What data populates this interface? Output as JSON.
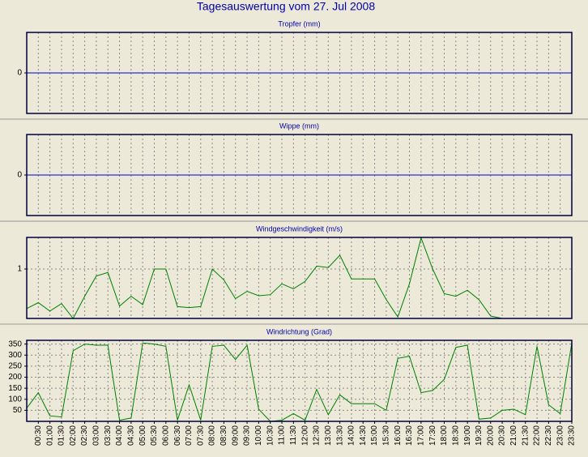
{
  "title": "Tagesauswertung vom 27. Jul 2008",
  "chart_data": [
    {
      "type": "line",
      "title": "Tropfer (mm)",
      "ylim": [
        -1,
        1
      ],
      "yticks": [
        0
      ],
      "grid": true,
      "series": [
        {
          "color": "#0000cc",
          "values": [
            0,
            0,
            0,
            0,
            0,
            0,
            0,
            0,
            0,
            0,
            0,
            0,
            0,
            0,
            0,
            0,
            0,
            0,
            0,
            0,
            0,
            0,
            0,
            0,
            0,
            0,
            0,
            0,
            0,
            0,
            0,
            0,
            0,
            0,
            0,
            0,
            0,
            0,
            0,
            0,
            0,
            0,
            0,
            0,
            0,
            0,
            0,
            0
          ]
        }
      ]
    },
    {
      "type": "line",
      "title": "Wippe (mm)",
      "ylim": [
        -1,
        1
      ],
      "yticks": [
        0
      ],
      "grid": true,
      "series": [
        {
          "color": "#0000cc",
          "values": [
            0,
            0,
            0,
            0,
            0,
            0,
            0,
            0,
            0,
            0,
            0,
            0,
            0,
            0,
            0,
            0,
            0,
            0,
            0,
            0,
            0,
            0,
            0,
            0,
            0,
            0,
            0,
            0,
            0,
            0,
            0,
            0,
            0,
            0,
            0,
            0,
            0,
            0,
            0,
            0,
            0,
            0,
            0,
            0,
            0,
            0,
            0,
            0
          ]
        }
      ]
    },
    {
      "type": "line",
      "title": "Windgeschwindigkeit (m/s)",
      "ylim": [
        0,
        1.64
      ],
      "yticks": [
        1
      ],
      "grid": true,
      "series": [
        {
          "color": "#008000",
          "values": [
            0.2,
            0.32,
            0.15,
            0.3,
            0,
            0.45,
            0.86,
            0.93,
            0.25,
            0.45,
            0.28,
            1,
            1,
            0.24,
            0.22,
            0.24,
            1,
            0.78,
            0.4,
            0.55,
            0.46,
            0.48,
            0.7,
            0.6,
            0.75,
            1.06,
            1.03,
            1.28,
            0.8,
            0.8,
            0.8,
            0.38,
            0.03,
            0.7,
            1.63,
            1,
            0.5,
            0.45,
            0.57,
            0.38,
            0.05,
            0,
            null,
            null,
            null,
            null,
            null,
            null
          ]
        }
      ]
    },
    {
      "type": "line",
      "title": "Windrichtung (Grad)",
      "ylim": [
        0,
        367
      ],
      "yticks": [
        50,
        100,
        150,
        200,
        250,
        300,
        350
      ],
      "grid": true,
      "categories": [
        null,
        "00:30",
        "01:00",
        "01:30",
        "02:00",
        "02:30",
        "03:00",
        "03:30",
        "04:00",
        "04:30",
        "05:00",
        "05:30",
        "06:00",
        "06:30",
        "07:00",
        "07:30",
        "08:00",
        "08:30",
        "09:00",
        "09:30",
        "10:00",
        "10:30",
        "11:00",
        "11:30",
        "12:00",
        "12:30",
        "13:00",
        "13:30",
        "14:00",
        "14:30",
        "15:00",
        "15:30",
        "16:00",
        "16:30",
        "17:00",
        "17:30",
        "18:00",
        "18:30",
        "19:00",
        "19:30",
        "20:00",
        "20:30",
        "21:00",
        "21:30",
        "22:00",
        "22:30",
        "23:00",
        "23:30"
      ],
      "series": [
        {
          "color": "#008000",
          "values": [
            60,
            130,
            25,
            20,
            320,
            350,
            345,
            345,
            5,
            15,
            355,
            350,
            340,
            5,
            165,
            5,
            340,
            345,
            280,
            345,
            55,
            0,
            5,
            35,
            5,
            145,
            30,
            120,
            80,
            80,
            80,
            50,
            285,
            295,
            130,
            140,
            190,
            335,
            345,
            10,
            15,
            50,
            55,
            30,
            340,
            75,
            35,
            355
          ]
        }
      ]
    }
  ]
}
